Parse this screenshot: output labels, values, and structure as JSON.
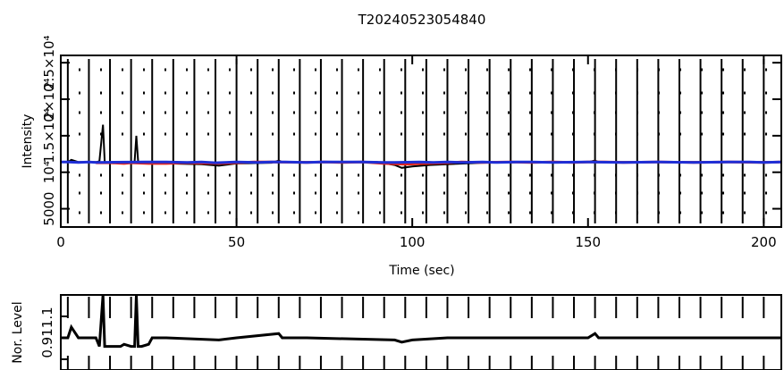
{
  "title": "T20240523054840",
  "chart_data": [
    {
      "type": "line",
      "title": "T20240523054840",
      "xlabel": "Time (sec)",
      "ylabel": "Intensity",
      "xlim": [
        0,
        205
      ],
      "ylim": [
        2500,
        26000
      ],
      "x_ticks": [
        0,
        50,
        100,
        150,
        200
      ],
      "x_tick_labels": [
        "0",
        "50",
        "100",
        "150",
        "200"
      ],
      "y_ticks": [
        5000,
        10000,
        15000,
        20000,
        25000
      ],
      "y_tick_labels": [
        "5000",
        "10⁴",
        "1.5×10⁴",
        "2×10⁴",
        "2.5×10⁴"
      ],
      "grid": false,
      "vertical_markers_x": [
        2,
        8,
        14,
        20,
        26,
        32,
        38,
        44,
        50,
        56,
        62,
        68,
        74,
        80,
        86,
        92,
        98,
        104,
        110,
        116,
        122,
        128,
        134,
        140,
        146,
        152,
        158,
        164,
        170,
        176,
        182,
        188,
        194,
        200
      ],
      "series": [
        {
          "color": "#000000",
          "x": [
            0,
            2,
            3,
            5,
            10,
            11,
            12,
            12.5,
            13,
            20,
            21,
            21.5,
            22,
            23,
            30,
            40,
            45,
            50,
            60,
            62,
            63,
            70,
            80,
            90,
            95,
            97,
            100,
            105,
            110,
            120,
            130,
            140,
            150,
            152,
            153,
            160,
            170,
            180,
            190,
            200,
            205
          ],
          "y": [
            11400,
            11400,
            11700,
            11400,
            11400,
            11500,
            16500,
            11500,
            11300,
            11300,
            11500,
            15000,
            11500,
            11300,
            11200,
            11100,
            10900,
            11200,
            11300,
            11600,
            11400,
            11400,
            11400,
            11400,
            11000,
            10600,
            10800,
            11000,
            11100,
            11300,
            11400,
            11400,
            11400,
            11600,
            11400,
            11400,
            11400,
            11400,
            11400,
            11400,
            11400
          ]
        },
        {
          "color": "#e0251e",
          "x": [
            10,
            14,
            18,
            20,
            25,
            30,
            35,
            45,
            50,
            55,
            60,
            70,
            75,
            80,
            86,
            92,
            98,
            104,
            110,
            114,
            120,
            128,
            134,
            140,
            146,
            150,
            155,
            160,
            170,
            180,
            190,
            200,
            205
          ],
          "y": [
            11300,
            11300,
            11200,
            11300,
            11200,
            11200,
            11300,
            11200,
            11300,
            11400,
            11400,
            11350,
            11400,
            11350,
            11400,
            11200,
            11100,
            11200,
            11300,
            11400,
            11350,
            11400,
            11350,
            11400,
            11350,
            11400,
            11400,
            11350,
            11400,
            11350,
            11400,
            11350,
            11400
          ]
        },
        {
          "color": "#1f2fd6",
          "x": [
            0,
            2,
            5,
            8,
            10,
            24,
            30,
            36,
            40,
            44,
            50,
            56,
            60,
            64,
            70,
            74,
            80,
            86,
            92,
            95,
            102,
            106,
            110,
            114,
            120,
            124,
            130,
            134,
            140,
            150,
            160,
            170,
            180,
            190,
            196,
            200,
            205
          ],
          "y": [
            11400,
            11400,
            11350,
            11400,
            11350,
            11400,
            11400,
            11350,
            11400,
            11300,
            11400,
            11350,
            11400,
            11400,
            11350,
            11400,
            11400,
            11400,
            11350,
            11350,
            11400,
            11350,
            11400,
            11350,
            11400,
            11350,
            11400,
            11400,
            11350,
            11400,
            11350,
            11400,
            11350,
            11400,
            11400,
            11350,
            11400
          ]
        }
      ]
    },
    {
      "type": "line",
      "ylabel": "Nor. Level",
      "xlim": [
        0,
        205
      ],
      "ylim": [
        0.85,
        1.2
      ],
      "y_ticks": [
        0.9,
        1.1
      ],
      "y_tick_labels": [
        "0.9",
        "1.1"
      ],
      "y_tick_label_text": "0.911.1",
      "grid": false,
      "series": [
        {
          "color": "#000000",
          "x": [
            0,
            2,
            3,
            5,
            10,
            11,
            12,
            12.5,
            13,
            14,
            17,
            18,
            20,
            21,
            21.5,
            22,
            23,
            25,
            26,
            30,
            45,
            50,
            62,
            63,
            70,
            95,
            97,
            100,
            110,
            150,
            152,
            153,
            205
          ],
          "y": [
            1.0,
            1.0,
            1.05,
            1.0,
            1.0,
            0.96,
            1.45,
            0.96,
            0.96,
            0.96,
            0.96,
            0.97,
            0.96,
            0.96,
            1.32,
            0.96,
            0.96,
            0.97,
            1.0,
            1.0,
            0.99,
            1.0,
            1.02,
            1.0,
            1.0,
            0.99,
            0.98,
            0.99,
            1.0,
            1.0,
            1.02,
            1.0,
            1.0
          ]
        }
      ]
    }
  ]
}
